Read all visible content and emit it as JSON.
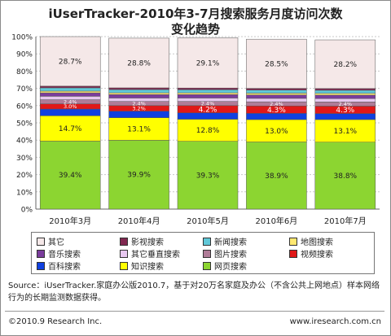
{
  "title": {
    "line1": "iUserTracker-2010年3-7月搜索服务月度访问次数",
    "line2": "变化趋势"
  },
  "chart_data": {
    "type": "bar",
    "stacked": true,
    "categories": [
      "2010年3月",
      "2010年4月",
      "2010年5月",
      "2010年6月",
      "2010年7月"
    ],
    "ylim": [
      0,
      100
    ],
    "yticks": [
      "0%",
      "10%",
      "20%",
      "30%",
      "40%",
      "50%",
      "60%",
      "70%",
      "80%",
      "90%",
      "100%"
    ],
    "grid": true,
    "series": [
      {
        "name": "网页搜索",
        "color": "#8CD531",
        "values": [
          39.4,
          39.9,
          39.3,
          38.9,
          38.8
        ],
        "labels": [
          "39.4%",
          "39.9%",
          "39.3%",
          "38.9%",
          "38.8%"
        ]
      },
      {
        "name": "知识搜索",
        "color": "#FFFF00",
        "values": [
          14.7,
          13.1,
          12.8,
          13.0,
          13.1
        ],
        "labels": [
          "14.7%",
          "13.1%",
          "12.8%",
          "13.0%",
          "13.1%"
        ]
      },
      {
        "name": "百科搜索",
        "color": "#1040E0",
        "values": [
          3.9,
          3.8,
          3.7,
          3.6,
          3.5
        ],
        "labels": [
          "",
          "",
          "",
          "",
          ""
        ]
      },
      {
        "name": "视频搜索",
        "color": "#E01818",
        "values": [
          3.0,
          3.2,
          4.2,
          4.3,
          4.3
        ],
        "labels": [
          "3.0%",
          "3.2%",
          "4.2%",
          "4.3%",
          "4.3%"
        ]
      },
      {
        "name": "图片搜索",
        "color": "#B07C98",
        "values": [
          2.4,
          2.4,
          2.4,
          2.4,
          2.4
        ],
        "labels": [
          "2.4%",
          "2.4%",
          "2.4%",
          "2.4%",
          "2.4%"
        ]
      },
      {
        "name": "其它垂直搜索",
        "color": "#E8C8F0",
        "values": [
          2.0,
          2.0,
          2.0,
          2.0,
          2.0
        ],
        "labels": [
          "",
          "",
          "",
          "",
          ""
        ]
      },
      {
        "name": "音乐搜索",
        "color": "#7A3C9C",
        "values": [
          2.0,
          2.0,
          2.0,
          2.0,
          2.0
        ],
        "labels": [
          "",
          "",
          "",
          "",
          ""
        ]
      },
      {
        "name": "地图搜索",
        "color": "#FFE870",
        "values": [
          1.0,
          1.0,
          1.0,
          1.0,
          1.0
        ],
        "labels": [
          "",
          "",
          "",
          "",
          ""
        ]
      },
      {
        "name": "新闻搜索",
        "color": "#60C8D8",
        "values": [
          1.9,
          1.9,
          1.8,
          1.8,
          1.8
        ],
        "labels": [
          "",
          "",
          "",
          "",
          ""
        ]
      },
      {
        "name": "影视搜索",
        "color": "#802850",
        "values": [
          1.0,
          1.0,
          1.0,
          1.0,
          1.0
        ],
        "labels": [
          "",
          "",
          "",
          "",
          ""
        ]
      },
      {
        "name": "其它",
        "color": "#F5E8E8",
        "values": [
          28.7,
          28.8,
          29.1,
          28.5,
          28.2
        ],
        "labels": [
          "28.7%",
          "28.8%",
          "29.1%",
          "28.5%",
          "28.2%"
        ]
      }
    ]
  },
  "legend": {
    "rows": [
      [
        "其它",
        "影视搜索",
        "新闻搜索",
        "地图搜索"
      ],
      [
        "音乐搜索",
        "其它垂直搜索",
        "图片搜索",
        "视频搜索"
      ],
      [
        "百科搜索",
        "知识搜索",
        "网页搜索"
      ]
    ],
    "colors": {
      "其它": "#F5E8E8",
      "影视搜索": "#802850",
      "新闻搜索": "#60C8D8",
      "地图搜索": "#FFE870",
      "音乐搜索": "#7A3C9C",
      "其它垂直搜索": "#E8C8F0",
      "图片搜索": "#B07C98",
      "视频搜索": "#E01818",
      "百科搜索": "#1040E0",
      "知识搜索": "#FFFF00",
      "网页搜索": "#8CD531"
    }
  },
  "source_text": "Source：iUserTracker.家庭办公版2010.7，基于对20万名家庭及办公（不含公共上网地点）样本网络行为的长期监测数据获得。",
  "footer": {
    "copyright": "©2010.9 Research Inc.",
    "website": "www.iresearch.com.cn"
  }
}
